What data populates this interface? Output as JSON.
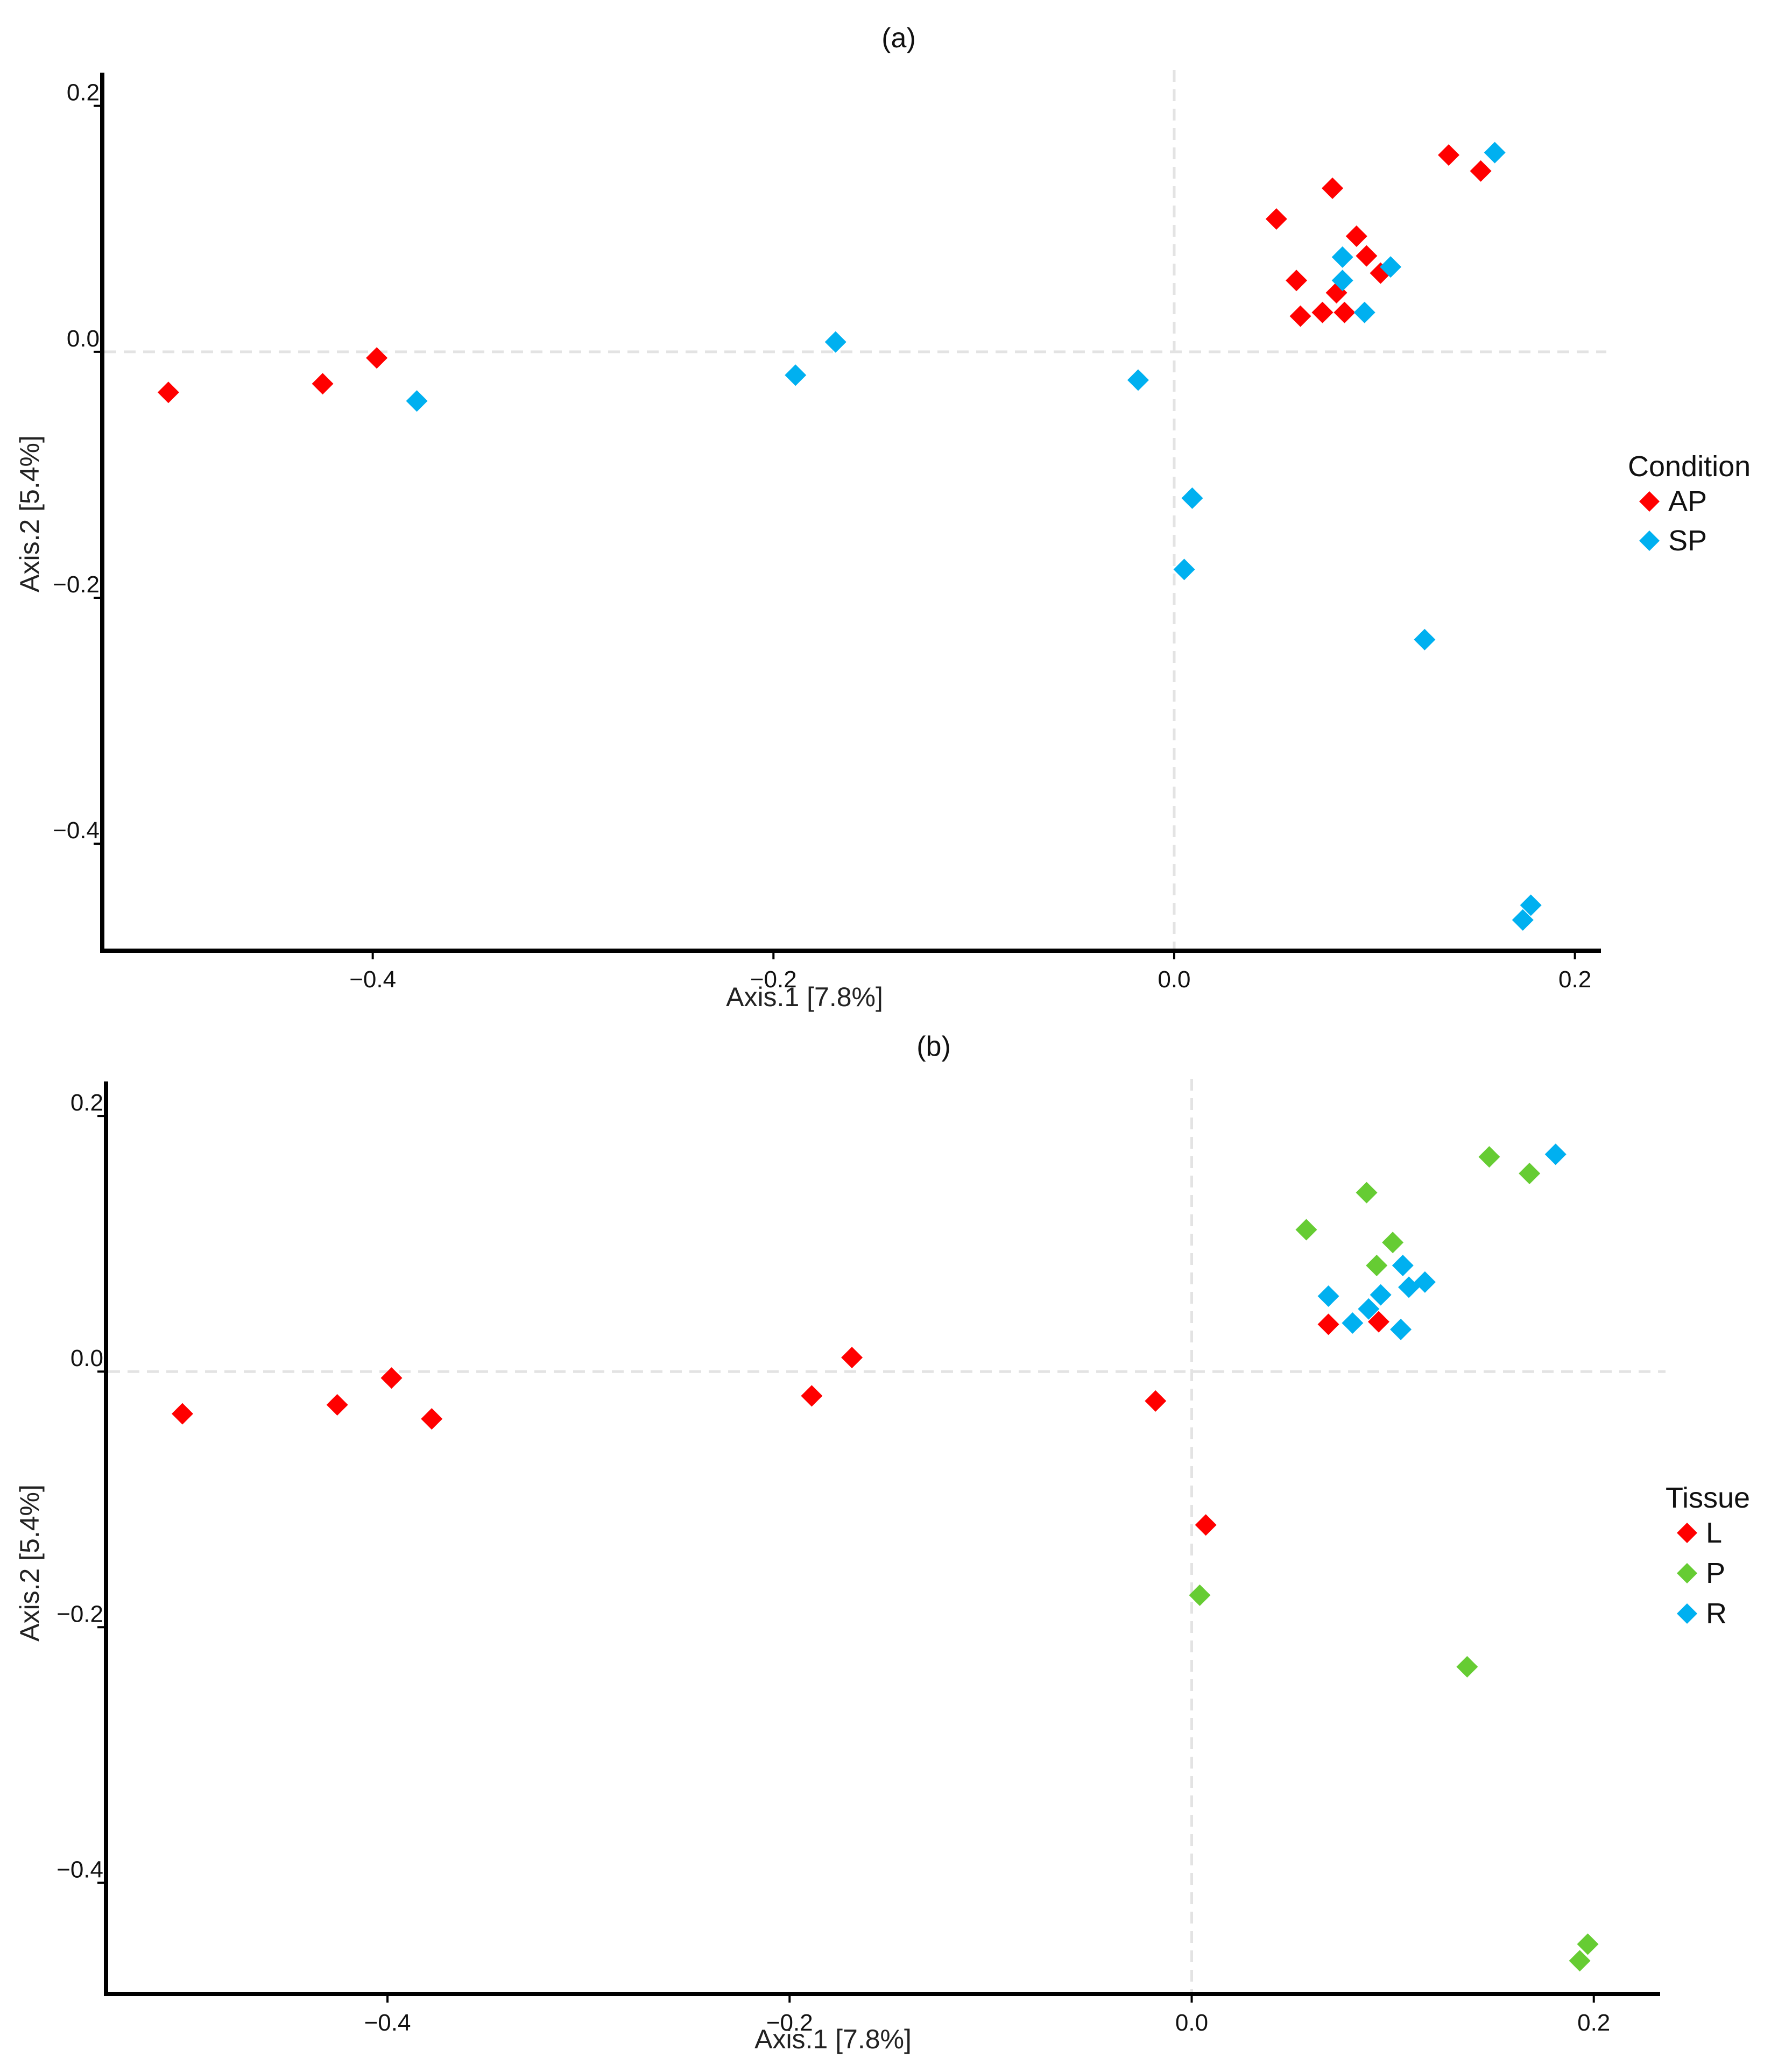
{
  "chart_data": [
    {
      "type": "scatter",
      "title": "(a)",
      "xlabel": "Axis.1 [7.8%]",
      "ylabel": "Axis.2 [5.4%]",
      "xlim": [
        -0.535,
        0.213
      ],
      "ylim": [
        -0.487,
        0.227
      ],
      "xticks": [
        -0.4,
        -0.2,
        0.0,
        0.2
      ],
      "xtick_labels": [
        "−0.4",
        "−0.2",
        "0.0",
        "0.2"
      ],
      "yticks": [
        0.2,
        0.0,
        -0.2,
        -0.4
      ],
      "ytick_labels": [
        "0.2",
        "0.0",
        "−0.2",
        "−0.4"
      ],
      "reference_lines": {
        "x": 0.0,
        "y": 0.0
      },
      "legend": {
        "title": "Condition",
        "entries": [
          {
            "label": "AP",
            "color": "#ff0000"
          },
          {
            "label": "SP",
            "color": "#00b0f0"
          }
        ]
      },
      "series": [
        {
          "name": "AP",
          "color": "#ff0000",
          "points": [
            {
              "x": -0.502,
              "y": -0.033
            },
            {
              "x": -0.425,
              "y": -0.026
            },
            {
              "x": -0.398,
              "y": -0.005
            },
            {
              "x": 0.051,
              "y": 0.108
            },
            {
              "x": 0.079,
              "y": 0.133
            },
            {
              "x": 0.091,
              "y": 0.094
            },
            {
              "x": 0.096,
              "y": 0.078
            },
            {
              "x": 0.061,
              "y": 0.058
            },
            {
              "x": 0.081,
              "y": 0.048
            },
            {
              "x": 0.103,
              "y": 0.064
            },
            {
              "x": 0.074,
              "y": 0.032
            },
            {
              "x": 0.063,
              "y": 0.029
            },
            {
              "x": 0.085,
              "y": 0.032
            },
            {
              "x": 0.137,
              "y": 0.16
            },
            {
              "x": 0.153,
              "y": 0.147
            }
          ]
        },
        {
          "name": "SP",
          "color": "#00b0f0",
          "points": [
            {
              "x": -0.378,
              "y": -0.04
            },
            {
              "x": -0.189,
              "y": -0.019
            },
            {
              "x": -0.169,
              "y": 0.008
            },
            {
              "x": -0.018,
              "y": -0.023
            },
            {
              "x": 0.009,
              "y": -0.119
            },
            {
              "x": 0.005,
              "y": -0.177
            },
            {
              "x": 0.125,
              "y": -0.234
            },
            {
              "x": 0.178,
              "y": -0.45
            },
            {
              "x": 0.174,
              "y": -0.462
            },
            {
              "x": 0.084,
              "y": 0.077
            },
            {
              "x": 0.084,
              "y": 0.058
            },
            {
              "x": 0.108,
              "y": 0.069
            },
            {
              "x": 0.095,
              "y": 0.032
            },
            {
              "x": 0.16,
              "y": 0.162
            }
          ]
        }
      ]
    },
    {
      "type": "scatter",
      "title": "(b)",
      "xlabel": "Axis.1 [7.8%]",
      "ylabel": "Axis.2 [5.4%]",
      "xlim": [
        -0.54,
        0.233
      ],
      "ylim": [
        -0.487,
        0.227
      ],
      "xticks": [
        -0.4,
        -0.2,
        0.0,
        0.2
      ],
      "xtick_labels": [
        "−0.4",
        "−0.2",
        "0.0",
        "0.2"
      ],
      "yticks": [
        0.2,
        0.0,
        -0.2,
        -0.4
      ],
      "ytick_labels": [
        "0.2",
        "0.0",
        "−0.2",
        "−0.4"
      ],
      "reference_lines": {
        "x": 0.0,
        "y": 0.0
      },
      "legend": {
        "title": "Tissue",
        "entries": [
          {
            "label": "L",
            "color": "#ff0000"
          },
          {
            "label": "P",
            "color": "#66cc33"
          },
          {
            "label": "R",
            "color": "#00b0f0"
          }
        ]
      },
      "series": [
        {
          "name": "L",
          "color": "#ff0000",
          "points": [
            {
              "x": -0.502,
              "y": -0.033
            },
            {
              "x": -0.425,
              "y": -0.026
            },
            {
              "x": -0.398,
              "y": -0.005
            },
            {
              "x": -0.378,
              "y": -0.037
            },
            {
              "x": -0.189,
              "y": -0.019
            },
            {
              "x": -0.169,
              "y": 0.011
            },
            {
              "x": -0.018,
              "y": -0.023
            },
            {
              "x": 0.007,
              "y": -0.12
            },
            {
              "x": 0.068,
              "y": 0.037
            },
            {
              "x": 0.093,
              "y": 0.039
            }
          ]
        },
        {
          "name": "P",
          "color": "#66cc33",
          "points": [
            {
              "x": 0.004,
              "y": -0.175
            },
            {
              "x": 0.137,
              "y": -0.231
            },
            {
              "x": 0.197,
              "y": -0.448
            },
            {
              "x": 0.193,
              "y": -0.461
            },
            {
              "x": 0.057,
              "y": 0.111
            },
            {
              "x": 0.087,
              "y": 0.14
            },
            {
              "x": 0.1,
              "y": 0.101
            },
            {
              "x": 0.092,
              "y": 0.083
            },
            {
              "x": 0.148,
              "y": 0.168
            },
            {
              "x": 0.168,
              "y": 0.155
            }
          ]
        },
        {
          "name": "R",
          "color": "#00b0f0",
          "points": [
            {
              "x": 0.068,
              "y": 0.059
            },
            {
              "x": 0.088,
              "y": 0.049
            },
            {
              "x": 0.094,
              "y": 0.06
            },
            {
              "x": 0.08,
              "y": 0.038
            },
            {
              "x": 0.105,
              "y": 0.083
            },
            {
              "x": 0.108,
              "y": 0.066
            },
            {
              "x": 0.116,
              "y": 0.07
            },
            {
              "x": 0.104,
              "y": 0.033
            },
            {
              "x": 0.181,
              "y": 0.17
            }
          ]
        }
      ]
    }
  ]
}
